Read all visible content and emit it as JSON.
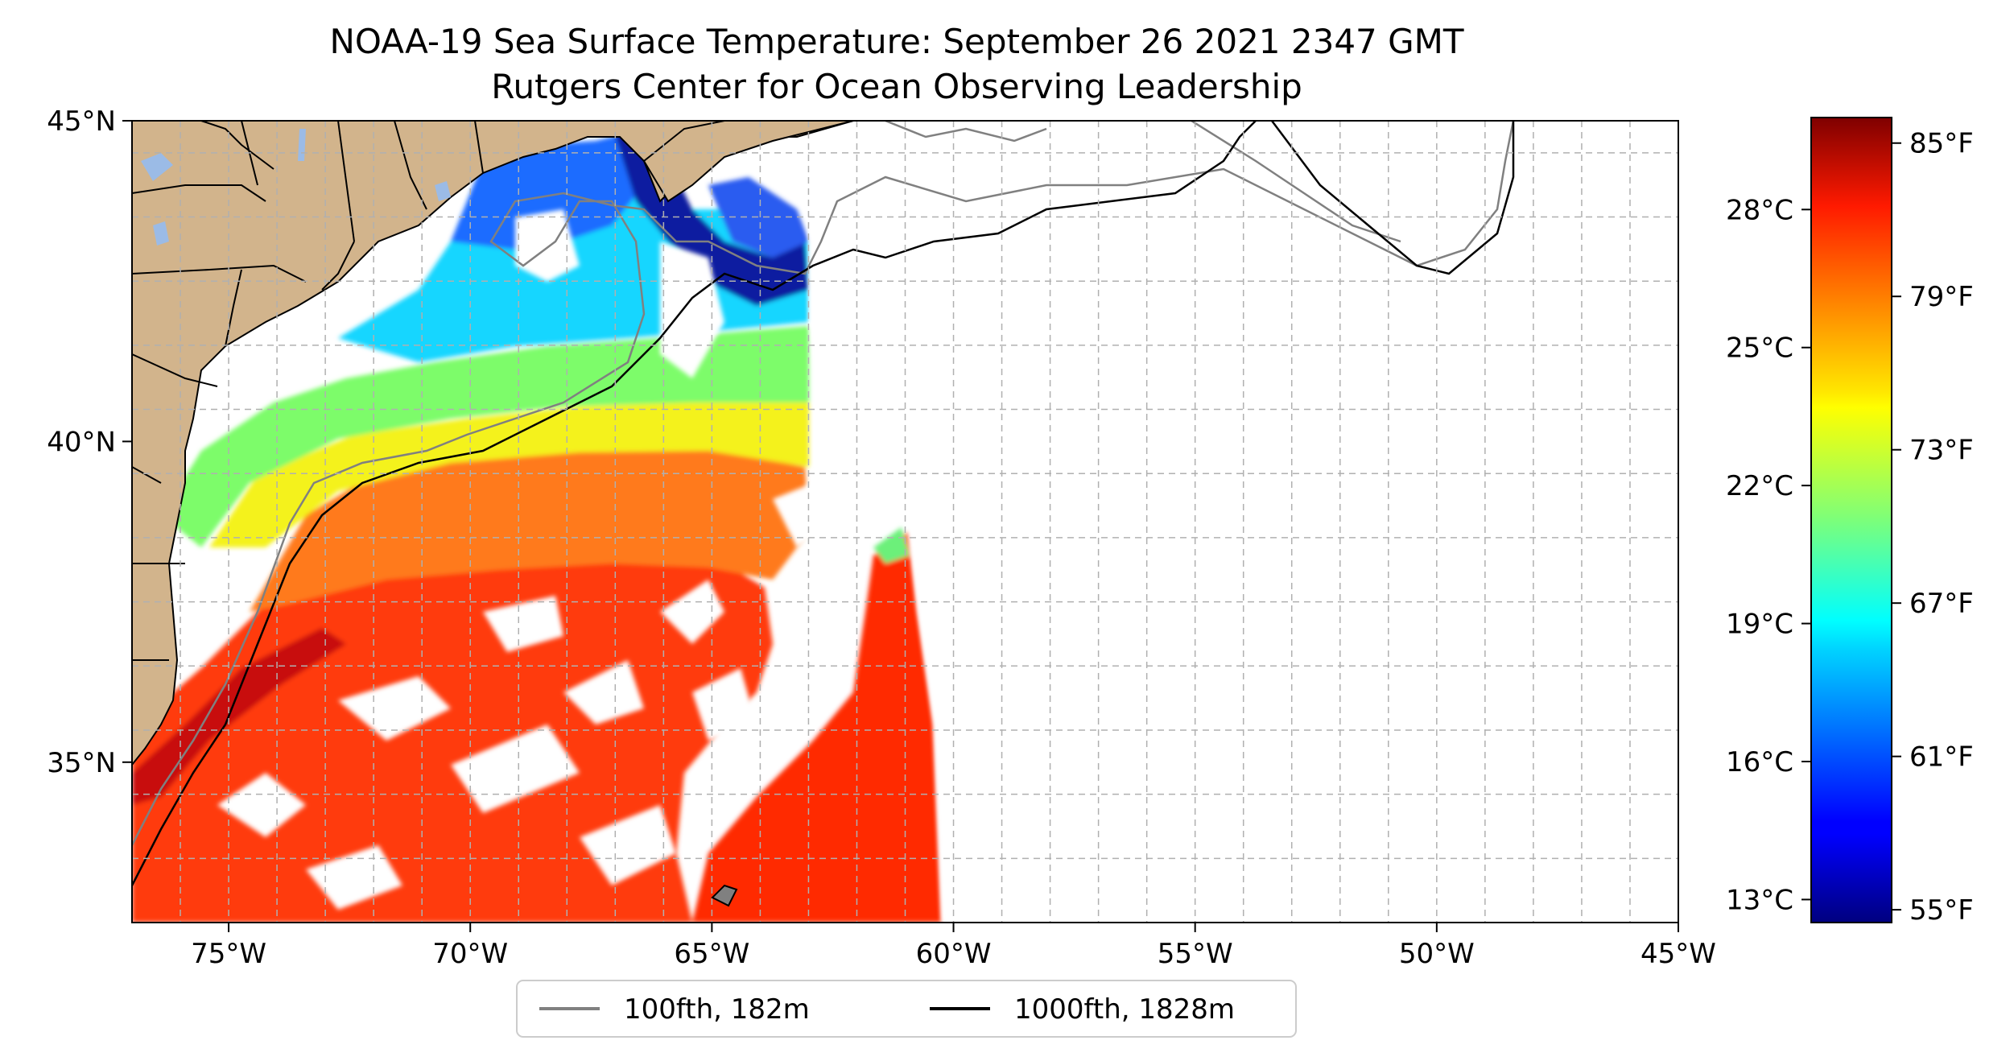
{
  "title": {
    "line1": "NOAA-19 Sea Surface Temperature: September 26 2021 2347 GMT",
    "line2": "Rutgers Center for Ocean Observing Leadership"
  },
  "map": {
    "lon_range": [
      -77,
      -45
    ],
    "lat_range": [
      32.5,
      45
    ],
    "x_ticks": [
      {
        "lon": -75,
        "label": "75°W"
      },
      {
        "lon": -70,
        "label": "70°W"
      },
      {
        "lon": -65,
        "label": "65°W"
      },
      {
        "lon": -60,
        "label": "60°W"
      },
      {
        "lon": -55,
        "label": "55°W"
      },
      {
        "lon": -50,
        "label": "50°W"
      },
      {
        "lon": -45,
        "label": "45°W"
      }
    ],
    "y_ticks": [
      {
        "lat": 45,
        "label": "45°N"
      },
      {
        "lat": 40,
        "label": "40°N"
      },
      {
        "lat": 35,
        "label": "35°N"
      }
    ],
    "gridlines": true,
    "land_color": "#d2b48c",
    "lake_color": "#9bbbe6"
  },
  "legend": {
    "placement": "bottom-center",
    "items": [
      {
        "label": "100fth, 182m",
        "color": "#808080"
      },
      {
        "label": "1000fth, 1828m",
        "color": "#000000"
      }
    ]
  },
  "colorbar": {
    "colormap": "jet",
    "range_f": [
      54.5,
      86
    ],
    "fahrenheit_ticks": [
      {
        "value": 85,
        "label": "85°F"
      },
      {
        "value": 79,
        "label": "79°F"
      },
      {
        "value": 73,
        "label": "73°F"
      },
      {
        "value": 67,
        "label": "67°F"
      },
      {
        "value": 61,
        "label": "61°F"
      },
      {
        "value": 55,
        "label": "55°F"
      }
    ],
    "celsius_ticks": [
      {
        "value": 28,
        "label": "28°C"
      },
      {
        "value": 25,
        "label": "25°C"
      },
      {
        "value": 22,
        "label": "22°C"
      },
      {
        "value": 19,
        "label": "19°C"
      },
      {
        "value": 16,
        "label": "16°C"
      },
      {
        "value": 13,
        "label": "13°C"
      }
    ]
  }
}
